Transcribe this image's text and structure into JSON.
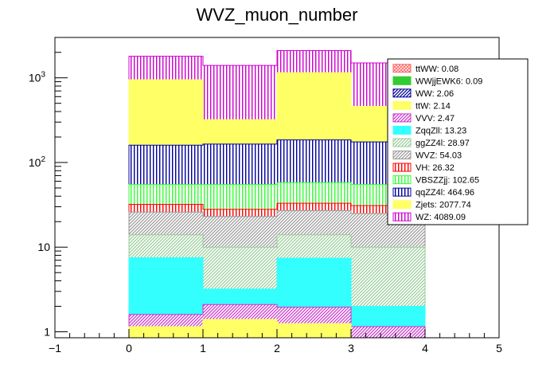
{
  "chart_data": {
    "type": "bar",
    "title": "WVZ_muon_number",
    "xlabel": "",
    "ylabel": "",
    "xlim": [
      -1,
      5
    ],
    "ylim": [
      0.85,
      3000
    ],
    "y_scale": "log",
    "stacked": true,
    "grid": false,
    "legend_position": "top-right",
    "bin_edges": [
      0,
      1,
      2,
      3,
      4
    ],
    "x_ticks": [
      -1,
      0,
      1,
      2,
      3,
      4,
      5
    ],
    "x_tick_labels": [
      "−1",
      "0",
      "1",
      "2",
      "3",
      "4",
      "5"
    ],
    "y_ticks": [
      1,
      10,
      100,
      1000
    ],
    "y_tick_labels": [
      "1",
      "10",
      "10²",
      "10³"
    ],
    "series": [
      {
        "name": "ttWW: 0.08",
        "color": "#ff6666",
        "hatch": "cross",
        "cumulative": [
          0,
          0,
          0,
          0
        ]
      },
      {
        "name": "WWjjEWK6: 0.09",
        "color": "#33cc33",
        "hatch": "solid",
        "cumulative": [
          0,
          0,
          0,
          0
        ]
      },
      {
        "name": "WW: 2.06",
        "color": "#000099",
        "hatch": "diag",
        "cumulative": [
          0,
          0,
          0,
          0
        ]
      },
      {
        "name": "ttW: 2.14",
        "color": "#ffff66",
        "hatch": "solid",
        "cumulative": [
          1.15,
          1.4,
          1.25,
          0
        ]
      },
      {
        "name": "VVV: 2.47",
        "color": "#cc33cc",
        "hatch": "diag",
        "cumulative": [
          1.6,
          2.1,
          1.95,
          1.15
        ]
      },
      {
        "name": "ZqqZll: 13.23",
        "color": "#33ffff",
        "hatch": "solid",
        "cumulative": [
          7.5,
          3.2,
          7.4,
          2.0
        ]
      },
      {
        "name": "ggZZ4l: 28.97",
        "color": "#99cc99",
        "hatch": "diag",
        "cumulative": [
          14,
          10,
          14,
          10
        ]
      },
      {
        "name": "WVZ: 54.03",
        "color": "#999999",
        "hatch": "diag",
        "cumulative": [
          26,
          23,
          27,
          25
        ]
      },
      {
        "name": "VH: 26.32",
        "color": "#ff0000",
        "hatch": "vert",
        "cumulative": [
          32,
          28,
          33,
          31
        ]
      },
      {
        "name": "VBSZZjj: 102.65",
        "color": "#33ff33",
        "hatch": "vert",
        "cumulative": [
          55,
          55,
          58,
          55
        ]
      },
      {
        "name": "qqZZ4l: 464.96",
        "color": "#000099",
        "hatch": "vert",
        "cumulative": [
          160,
          165,
          185,
          175
        ]
      },
      {
        "name": "Zjets: 2077.74",
        "color": "#ffff66",
        "hatch": "solid",
        "cumulative": [
          950,
          320,
          1150,
          460
        ]
      },
      {
        "name": "WZ: 4089.09",
        "color": "#cc00cc",
        "hatch": "vert",
        "cumulative": [
          1800,
          1400,
          2100,
          1500
        ]
      }
    ]
  }
}
